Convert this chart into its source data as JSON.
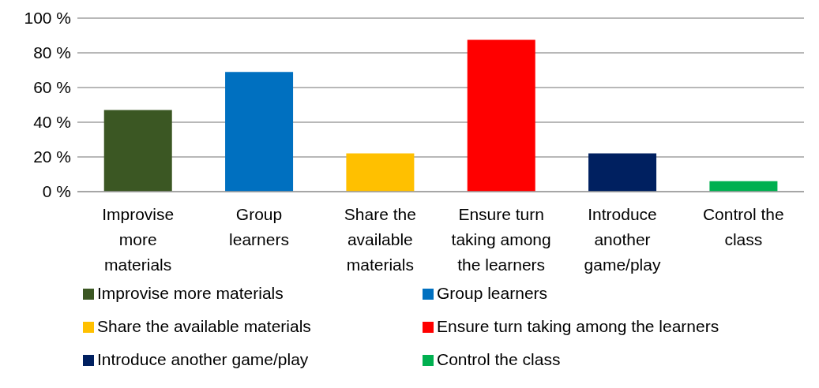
{
  "chart_data": {
    "type": "bar",
    "stacked": true,
    "categories": [
      "Improvise more materials",
      "Group learners",
      "Share the available materials",
      "Ensure turn taking among the learners",
      "Introduce another game/play",
      "Control the class"
    ],
    "series": [
      {
        "name": "Improvise more materials",
        "color": "#3b5723",
        "values": [
          47,
          null,
          null,
          null,
          null,
          null
        ]
      },
      {
        "name": "Group learners",
        "color": "#0070c0",
        "values": [
          null,
          69,
          null,
          null,
          null,
          null
        ]
      },
      {
        "name": "Share the available materials",
        "color": "#ffc000",
        "values": [
          null,
          null,
          22,
          null,
          null,
          null
        ]
      },
      {
        "name": "Ensure turn taking among the learners",
        "color": "#ff0000",
        "values": [
          null,
          null,
          null,
          87.5,
          null,
          null
        ]
      },
      {
        "name": "Introduce another game/play",
        "color": "#002060",
        "values": [
          null,
          null,
          null,
          null,
          22,
          null
        ]
      },
      {
        "name": "Control the class",
        "color": "#00b050",
        "values": [
          null,
          null,
          null,
          null,
          null,
          6
        ]
      }
    ],
    "ylim": [
      0,
      100
    ],
    "yticks": [
      {
        "value": 0,
        "label": "0 %"
      },
      {
        "value": 20,
        "label": "20 %"
      },
      {
        "value": 40,
        "label": "40 %"
      },
      {
        "value": 60,
        "label": "60 %"
      },
      {
        "value": 80,
        "label": "80 %"
      },
      {
        "value": 100,
        "label": "100 %"
      }
    ],
    "grid": "y",
    "legend": "bottom"
  }
}
